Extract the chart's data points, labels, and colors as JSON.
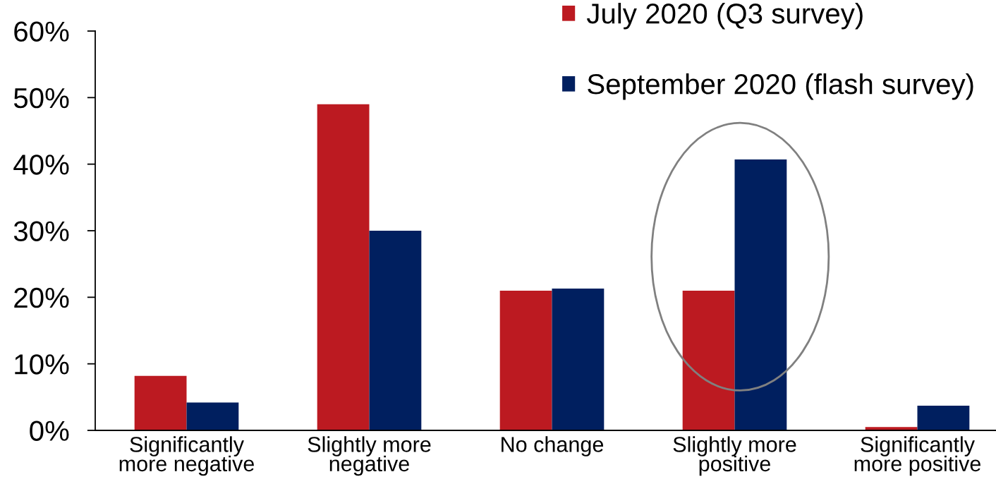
{
  "chart_data": {
    "type": "bar",
    "categories": [
      "Significantly\nmore negative",
      "Slightly more\nnegative",
      "No change",
      "Slightly more\npositive",
      "Significantly\nmore positive"
    ],
    "series": [
      {
        "name": "July 2020 (Q3 survey)",
        "color": "#bc1a21",
        "values": [
          8.2,
          49,
          21,
          21,
          0.5
        ]
      },
      {
        "name": "September 2020 (flash survey)",
        "color": "#001f5f",
        "values": [
          4.2,
          30,
          21.3,
          40.7,
          3.7
        ]
      }
    ],
    "ylim": [
      0,
      60
    ],
    "yticks": [
      {
        "value": 0,
        "label": "0%"
      },
      {
        "value": 10,
        "label": "10%"
      },
      {
        "value": 20,
        "label": "20%"
      },
      {
        "value": 30,
        "label": "30%"
      },
      {
        "value": 40,
        "label": "40%"
      },
      {
        "value": 50,
        "label": "50%"
      },
      {
        "value": 60,
        "label": "60%"
      }
    ],
    "grid": false,
    "legend": "top right"
  }
}
